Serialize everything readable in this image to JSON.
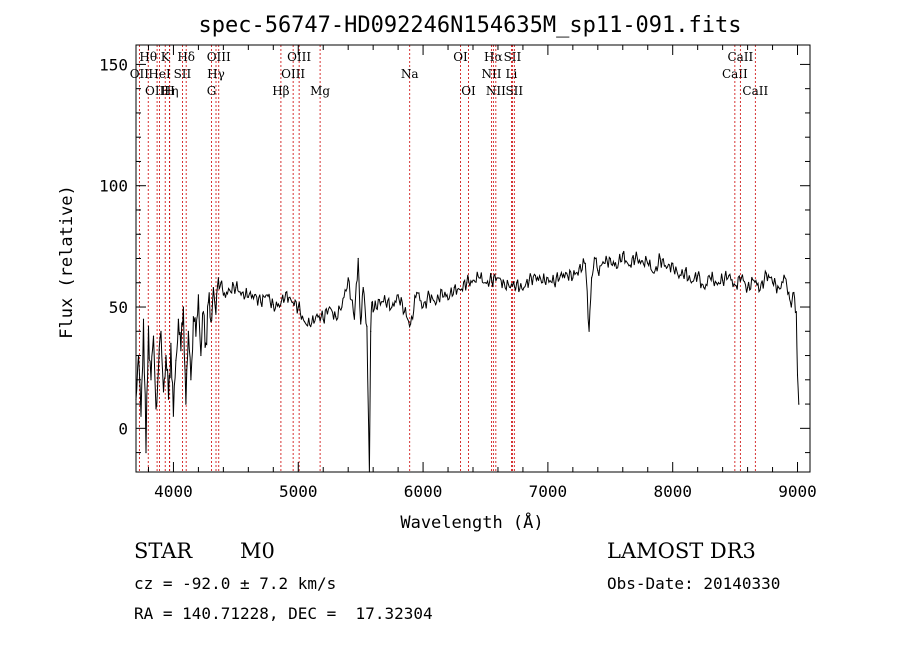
{
  "chart_data": {
    "type": "line",
    "title": "spec-56747-HD092246N154635M_sp11-091.fits",
    "xlabel": "Wavelength (Å)",
    "ylabel": "Flux (relative)",
    "xlim": [
      3700,
      9100
    ],
    "ylim": [
      -18,
      158
    ],
    "xticks": [
      4000,
      5000,
      6000,
      7000,
      8000,
      9000
    ],
    "yticks": [
      0,
      50,
      100,
      150
    ],
    "minor_x_step": 200,
    "minor_y_step": 10,
    "series": [
      {
        "name": "spectrum",
        "x": [
          3700,
          3720,
          3740,
          3760,
          3780,
          3800,
          3820,
          3840,
          3860,
          3880,
          3900,
          3920,
          3940,
          3960,
          3980,
          4000,
          4020,
          4040,
          4060,
          4080,
          4100,
          4120,
          4140,
          4160,
          4180,
          4200,
          4220,
          4240,
          4260,
          4280,
          4300,
          4320,
          4340,
          4360,
          4380,
          4400,
          4450,
          4500,
          4550,
          4600,
          4650,
          4700,
          4750,
          4800,
          4850,
          4900,
          4950,
          5000,
          5050,
          5100,
          5150,
          5200,
          5250,
          5300,
          5350,
          5400,
          5450,
          5480,
          5500,
          5520,
          5550,
          5570,
          5580,
          5590,
          5600,
          5650,
          5700,
          5750,
          5800,
          5850,
          5900,
          5950,
          6000,
          6050,
          6100,
          6150,
          6200,
          6250,
          6300,
          6350,
          6400,
          6450,
          6500,
          6550,
          6600,
          6650,
          6700,
          6750,
          6800,
          6850,
          6900,
          6950,
          7000,
          7050,
          7100,
          7150,
          7200,
          7250,
          7300,
          7330,
          7350,
          7380,
          7400,
          7450,
          7500,
          7550,
          7600,
          7650,
          7700,
          7750,
          7800,
          7850,
          7900,
          7950,
          8000,
          8050,
          8100,
          8150,
          8200,
          8250,
          8300,
          8350,
          8400,
          8450,
          8500,
          8550,
          8600,
          8650,
          8700,
          8750,
          8800,
          8850,
          8900,
          8930,
          8950,
          8970,
          8990,
          9000,
          9010
        ],
        "values": [
          12,
          30,
          5,
          45,
          -10,
          42,
          20,
          38,
          8,
          25,
          40,
          15,
          30,
          12,
          35,
          5,
          28,
          45,
          32,
          50,
          10,
          40,
          20,
          46,
          38,
          55,
          30,
          48,
          35,
          52,
          44,
          58,
          47,
          62,
          60,
          55,
          57,
          58,
          56,
          54,
          55,
          52,
          55,
          51,
          50,
          56,
          52,
          50,
          44,
          42,
          47,
          45,
          50,
          46,
          50,
          62,
          45,
          70,
          43,
          58,
          42,
          -18,
          40,
          52,
          48,
          53,
          52,
          50,
          55,
          48,
          43,
          56,
          50,
          55,
          51,
          57,
          53,
          58,
          57,
          60,
          61,
          62,
          60,
          61,
          62,
          60,
          58,
          60,
          57,
          61,
          63,
          60,
          62,
          60,
          63,
          64,
          62,
          66,
          68,
          40,
          62,
          70,
          65,
          68,
          70,
          66,
          72,
          67,
          70,
          69,
          68,
          64,
          70,
          66,
          68,
          62,
          65,
          60,
          63,
          58,
          62,
          60,
          61,
          63,
          59,
          62,
          58,
          61,
          57,
          64,
          60,
          58,
          62,
          56,
          50,
          56,
          48,
          22,
          10
        ]
      }
    ],
    "spectral_lines": [
      {
        "label": "OII",
        "wave": 3727,
        "row": 2
      },
      {
        "label": "Hθ",
        "wave": 3798,
        "row": 1
      },
      {
        "label": "OIII",
        "wave": 3869,
        "row": 3
      },
      {
        "label": "HeI",
        "wave": 3889,
        "row": 2
      },
      {
        "label": "K",
        "wave": 3934,
        "row": 1
      },
      {
        "label": "Hη",
        "wave": 3970,
        "row": 3
      },
      {
        "label": "H",
        "wave": 3969,
        "row": 3
      },
      {
        "label": "SII",
        "wave": 4072,
        "row": 2
      },
      {
        "label": "Hδ",
        "wave": 4102,
        "row": 1
      },
      {
        "label": "G",
        "wave": 4305,
        "row": 3
      },
      {
        "label": "Hγ",
        "wave": 4341,
        "row": 2
      },
      {
        "label": "OIII",
        "wave": 4363,
        "row": 1
      },
      {
        "label": "Hβ",
        "wave": 4861,
        "row": 3
      },
      {
        "label": "OIII",
        "wave": 4959,
        "row": 2
      },
      {
        "label": "OIII",
        "wave": 5007,
        "row": 1
      },
      {
        "label": "Mg",
        "wave": 5175,
        "row": 3
      },
      {
        "label": "Na",
        "wave": 5893,
        "row": 2
      },
      {
        "label": "OI",
        "wave": 6300,
        "row": 1
      },
      {
        "label": "OI",
        "wave": 6364,
        "row": 3
      },
      {
        "label": "NII",
        "wave": 6548,
        "row": 2
      },
      {
        "label": "Hα",
        "wave": 6563,
        "row": 1
      },
      {
        "label": "NII",
        "wave": 6583,
        "row": 3
      },
      {
        "label": "Li",
        "wave": 6708,
        "row": 2
      },
      {
        "label": "SII",
        "wave": 6716,
        "row": 1
      },
      {
        "label": "SII",
        "wave": 6731,
        "row": 3
      },
      {
        "label": "CaII",
        "wave": 8498,
        "row": 2
      },
      {
        "label": "CaII",
        "wave": 8542,
        "row": 1
      },
      {
        "label": "CaII",
        "wave": 8662,
        "row": 3
      }
    ],
    "line_color": "#cc0000",
    "spectrum_color": "#000000"
  },
  "info": {
    "object_class": "STAR",
    "subclass": "M0",
    "survey": "LAMOST DR3",
    "redshift": "cz = -92.0 ± 7.2 km/s",
    "obs_date": "Obs-Date: 20140330",
    "coords": "RA = 140.71228, DEC =  17.32304"
  }
}
